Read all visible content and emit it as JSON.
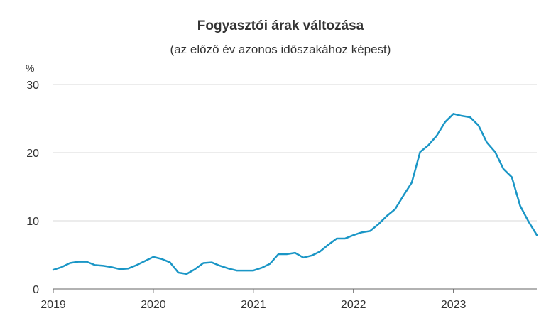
{
  "chart_data": {
    "type": "line",
    "title": "Fogyasztói árak változása",
    "subtitle": "(az előző év azonos időszakához képest)",
    "y_unit": "%",
    "xlabel": "",
    "ylabel": "",
    "ylim": [
      0,
      30
    ],
    "xlim": [
      2019.0,
      2023.833
    ],
    "y_ticks": [
      "0",
      "10",
      "20",
      "30"
    ],
    "y_tick_values": [
      0,
      10,
      20,
      30
    ],
    "x_ticks": [
      "2019",
      "2020",
      "2021",
      "2022",
      "2023"
    ],
    "x_tick_values": [
      2019,
      2020,
      2021,
      2022,
      2023
    ],
    "grid": "horizontal",
    "legend": "none",
    "line_color": "#1a96c6",
    "series": [
      {
        "x": [
          "2019-01",
          "2019-02",
          "2019-03",
          "2019-04",
          "2019-05",
          "2019-06",
          "2019-07",
          "2019-08",
          "2019-09",
          "2019-10",
          "2019-11",
          "2019-12",
          "2020-01",
          "2020-02",
          "2020-03",
          "2020-04",
          "2020-05",
          "2020-06",
          "2020-07",
          "2020-08",
          "2020-09",
          "2020-10",
          "2020-11",
          "2020-12",
          "2021-01",
          "2021-02",
          "2021-03",
          "2021-04",
          "2021-05",
          "2021-06",
          "2021-07",
          "2021-08",
          "2021-09",
          "2021-10",
          "2021-11",
          "2021-12",
          "2022-01",
          "2022-02",
          "2022-03",
          "2022-04",
          "2022-05",
          "2022-06",
          "2022-07",
          "2022-08",
          "2022-09",
          "2022-10",
          "2022-11",
          "2022-12",
          "2023-01",
          "2023-02",
          "2023-03",
          "2023-04",
          "2023-05",
          "2023-06",
          "2023-07",
          "2023-08",
          "2023-09",
          "2023-10",
          "2023-11"
        ],
        "values": [
          2.8,
          3.2,
          3.8,
          4.0,
          4.0,
          3.5,
          3.4,
          3.2,
          2.9,
          3.0,
          3.5,
          4.1,
          4.7,
          4.4,
          3.9,
          2.4,
          2.2,
          2.9,
          3.8,
          3.9,
          3.4,
          3.0,
          2.7,
          2.7,
          2.7,
          3.1,
          3.7,
          5.1,
          5.1,
          5.3,
          4.6,
          4.9,
          5.5,
          6.5,
          7.4,
          7.4,
          7.9,
          8.3,
          8.5,
          9.5,
          10.7,
          11.7,
          13.7,
          15.6,
          20.1,
          21.1,
          22.5,
          24.5,
          25.7,
          25.4,
          25.2,
          24.0,
          21.5,
          20.1,
          17.6,
          16.4,
          12.2,
          9.9,
          7.9
        ]
      }
    ]
  }
}
